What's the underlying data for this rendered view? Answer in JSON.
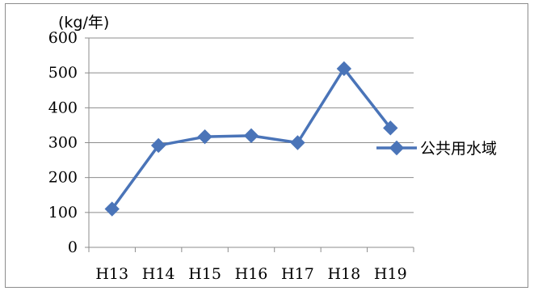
{
  "chart_data": {
    "type": "line",
    "title": "",
    "xlabel": "",
    "ylabel": "(kg/年)",
    "categories": [
      "H13",
      "H14",
      "H15",
      "H16",
      "H17",
      "H18",
      "H19"
    ],
    "series": [
      {
        "name": "公共用水域",
        "values": [
          110,
          292,
          317,
          320,
          300,
          512,
          342
        ],
        "color": "#4a74b8"
      }
    ],
    "ylim": [
      0,
      600
    ],
    "yticks": [
      "0",
      "100",
      "200",
      "300",
      "400",
      "500",
      "600"
    ],
    "grid": true,
    "legend": "right"
  }
}
